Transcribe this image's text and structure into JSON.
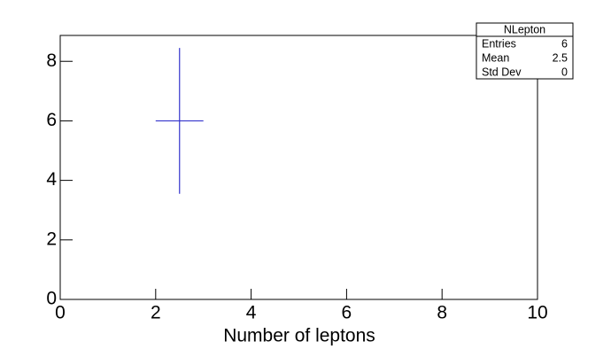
{
  "chart_data": {
    "type": "errorbar",
    "x_label": "Number of leptons",
    "x": [
      2.5
    ],
    "x_errors": [
      0.5
    ],
    "values": [
      6
    ],
    "errors": [
      2.449
    ],
    "color": "#3333cc",
    "xlim": [
      0,
      10
    ],
    "xticks": [
      0,
      2,
      4,
      6,
      8,
      10
    ],
    "ylim": [
      0,
      8.87
    ],
    "yticks": [
      0,
      2,
      4,
      6,
      8
    ],
    "stats": {
      "title": "NLepton",
      "rows": [
        [
          "Entries",
          6
        ],
        [
          "Mean",
          2.5
        ],
        [
          "Std Dev",
          0
        ]
      ]
    }
  }
}
